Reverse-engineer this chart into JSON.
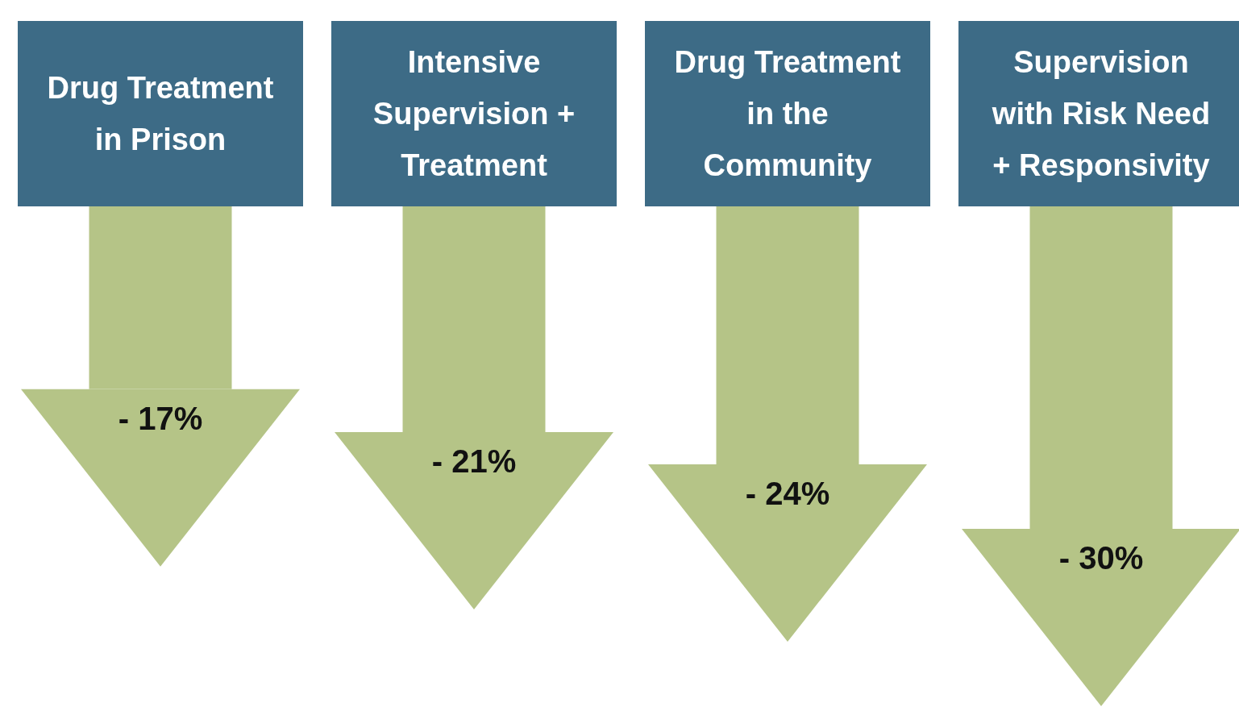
{
  "chart_data": {
    "type": "bar",
    "categories": [
      "Drug Treatment in Prison",
      "Intensive Supervision + Treatment",
      "Drug Treatment in the Community",
      "Supervision with Risk Need + Responsivity"
    ],
    "values": [
      -17,
      -21,
      -24,
      -30
    ],
    "value_labels": [
      "- 17%",
      "- 21%",
      "- 24%",
      "- 30%"
    ],
    "color": "#b5c487"
  }
}
